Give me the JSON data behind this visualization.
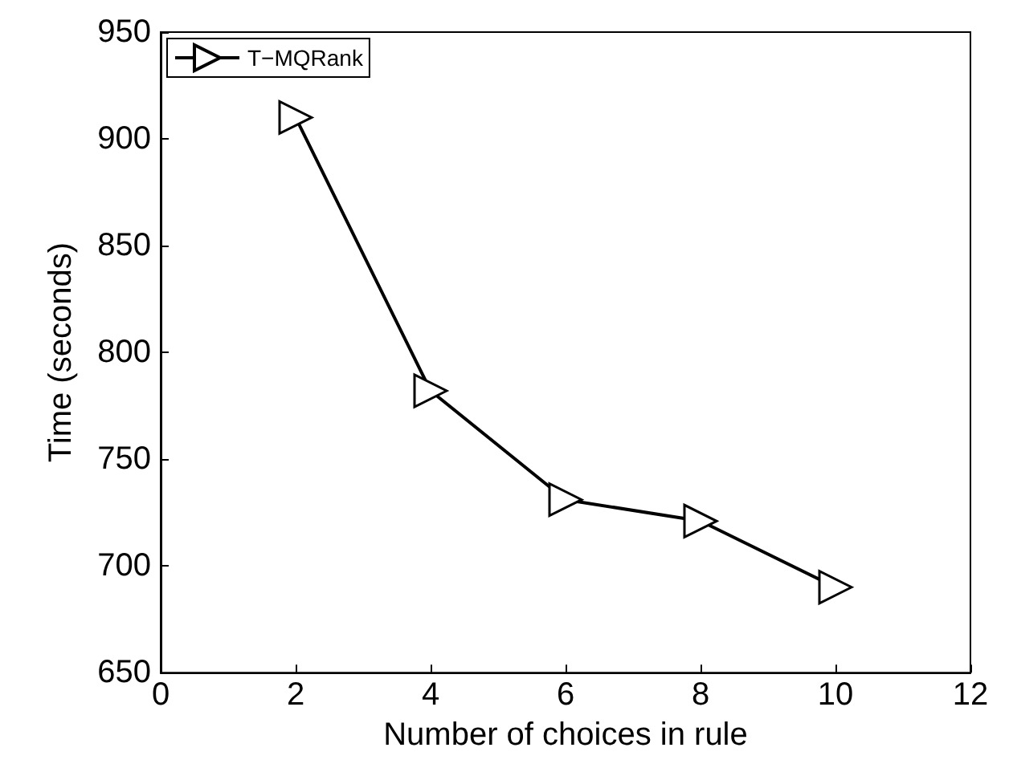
{
  "chart_data": {
    "type": "line",
    "xlabel": "Number of choices in rule",
    "ylabel": "Time (seconds)",
    "x": [
      2,
      4,
      6,
      8,
      10
    ],
    "series": [
      {
        "name": "T−MQRank",
        "color": "#000000",
        "values": [
          910,
          782,
          731,
          721,
          690
        ]
      }
    ],
    "xlim": [
      0,
      12
    ],
    "xticks": [
      0,
      2,
      4,
      6,
      8,
      10,
      12
    ],
    "ylim": [
      650,
      950
    ],
    "yticks": [
      650,
      700,
      750,
      800,
      850,
      900,
      950
    ],
    "legend": "top left",
    "marker": "triangle",
    "line_style": "solid",
    "grid": false
  }
}
